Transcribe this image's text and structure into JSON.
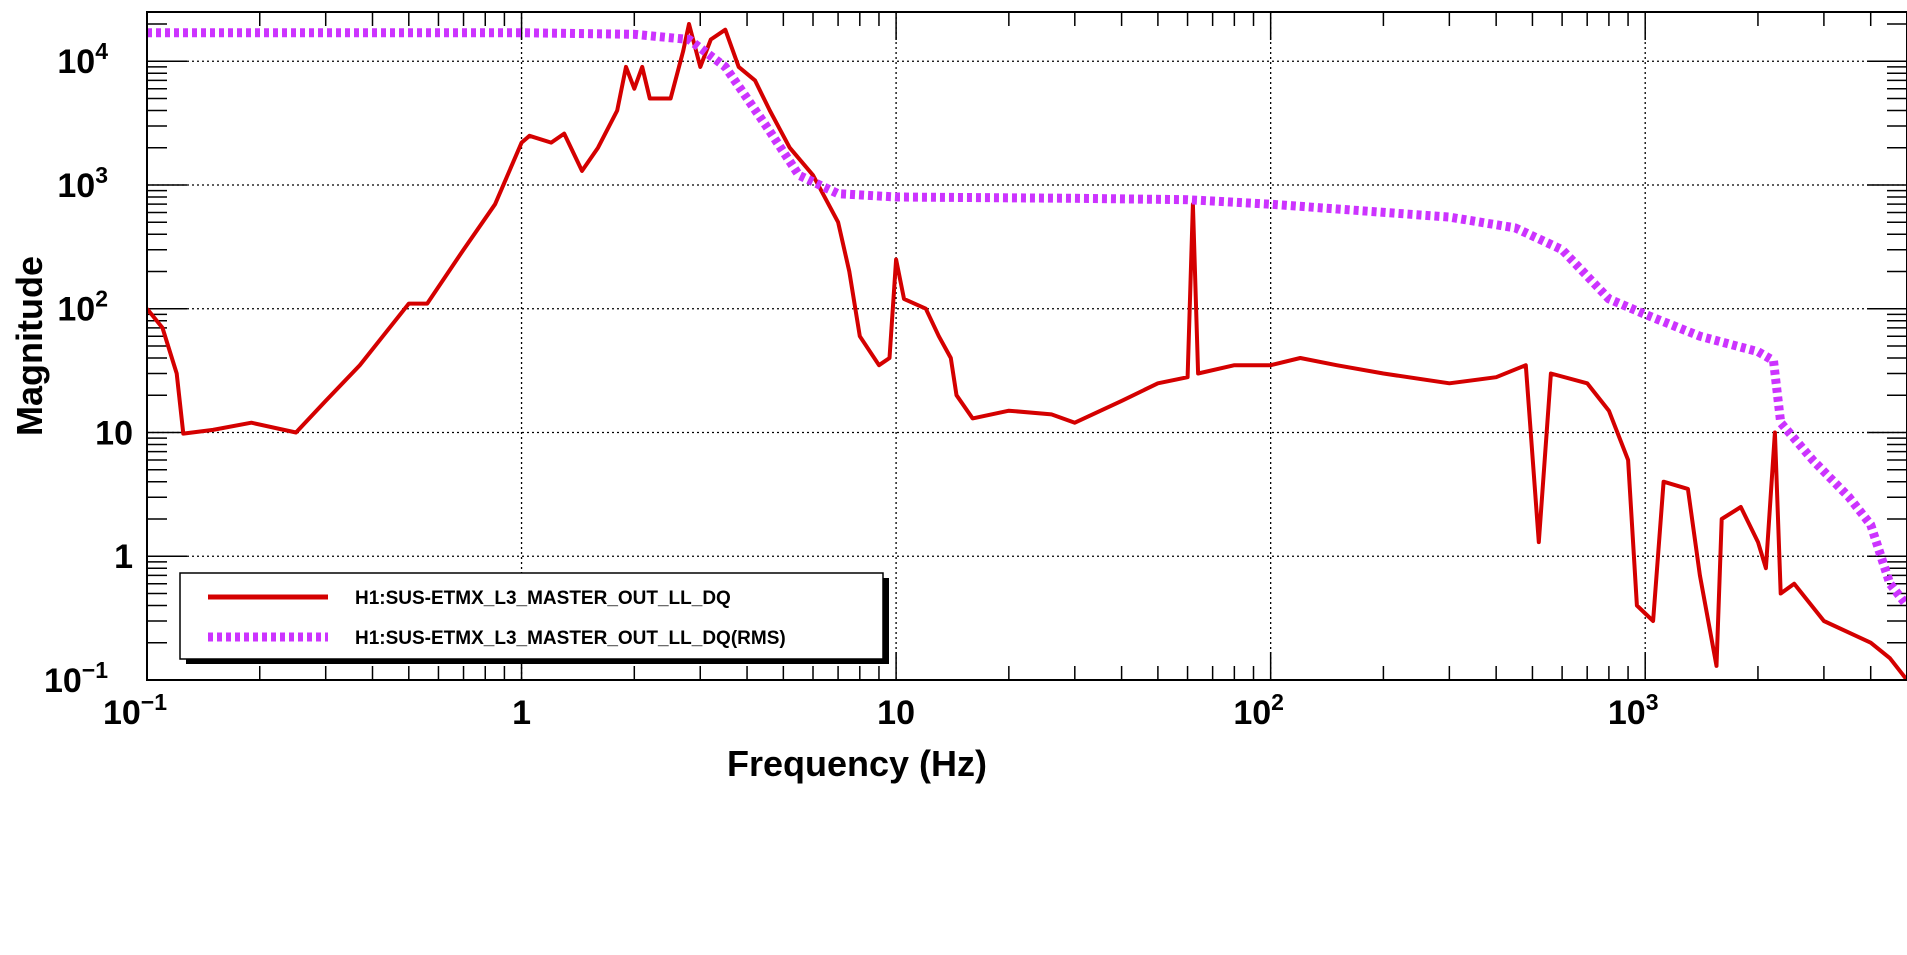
{
  "chart_data": {
    "type": "line",
    "xlabel": "Frequency (Hz)",
    "ylabel": "Magnitude",
    "xscale": "log",
    "yscale": "log",
    "xlim": [
      0.1,
      5000
    ],
    "ylim": [
      0.1,
      25000
    ],
    "grid": true,
    "legend_placement": "bottom-left",
    "x_tick_labels": [
      {
        "value": 0.1,
        "base": "10",
        "exp": "−1"
      },
      {
        "value": 1,
        "base": "1",
        "exp": ""
      },
      {
        "value": 10,
        "base": "10",
        "exp": ""
      },
      {
        "value": 100,
        "base": "10",
        "exp": "2"
      },
      {
        "value": 1000,
        "base": "10",
        "exp": "3"
      }
    ],
    "y_tick_labels": [
      {
        "value": 0.1,
        "base": "10",
        "exp": "−1"
      },
      {
        "value": 1,
        "base": "1",
        "exp": ""
      },
      {
        "value": 10,
        "base": "10",
        "exp": ""
      },
      {
        "value": 100,
        "base": "10",
        "exp": "2"
      },
      {
        "value": 1000,
        "base": "10",
        "exp": "3"
      },
      {
        "value": 10000,
        "base": "10",
        "exp": "4"
      }
    ],
    "series": [
      {
        "name": "H1:SUS-ETMX_L3_MASTER_OUT_LL_DQ",
        "color": "#d40000",
        "style": "solid",
        "points": [
          [
            0.1,
            100
          ],
          [
            0.11,
            70
          ],
          [
            0.12,
            30
          ],
          [
            0.125,
            9.8
          ],
          [
            0.15,
            10.5
          ],
          [
            0.19,
            12
          ],
          [
            0.25,
            10
          ],
          [
            0.3,
            18
          ],
          [
            0.37,
            35
          ],
          [
            0.5,
            110
          ],
          [
            0.56,
            110
          ],
          [
            0.7,
            300
          ],
          [
            0.85,
            700
          ],
          [
            1.0,
            2200
          ],
          [
            1.05,
            2500
          ],
          [
            1.2,
            2200
          ],
          [
            1.3,
            2600
          ],
          [
            1.45,
            1300
          ],
          [
            1.6,
            2000
          ],
          [
            1.8,
            4000
          ],
          [
            1.9,
            9000
          ],
          [
            2.0,
            6000
          ],
          [
            2.1,
            9000
          ],
          [
            2.2,
            5000
          ],
          [
            2.5,
            5000
          ],
          [
            2.7,
            12000
          ],
          [
            2.8,
            20000
          ],
          [
            3.0,
            9000
          ],
          [
            3.2,
            15000
          ],
          [
            3.5,
            18000
          ],
          [
            3.8,
            9000
          ],
          [
            4.2,
            7000
          ],
          [
            4.6,
            4000
          ],
          [
            5.2,
            2000
          ],
          [
            6,
            1200
          ],
          [
            7,
            500
          ],
          [
            7.5,
            200
          ],
          [
            8,
            60
          ],
          [
            9,
            35
          ],
          [
            9.6,
            40
          ],
          [
            10,
            250
          ],
          [
            10.5,
            120
          ],
          [
            12,
            100
          ],
          [
            13,
            60
          ],
          [
            14,
            40
          ],
          [
            14.5,
            20
          ],
          [
            16,
            13
          ],
          [
            20,
            15
          ],
          [
            26,
            14
          ],
          [
            30,
            12
          ],
          [
            40,
            18
          ],
          [
            50,
            25
          ],
          [
            60,
            28
          ],
          [
            62,
            700
          ],
          [
            64,
            30
          ],
          [
            80,
            35
          ],
          [
            100,
            35
          ],
          [
            120,
            40
          ],
          [
            150,
            35
          ],
          [
            200,
            30
          ],
          [
            300,
            25
          ],
          [
            400,
            28
          ],
          [
            480,
            35
          ],
          [
            520,
            1.3
          ],
          [
            560,
            30
          ],
          [
            700,
            25
          ],
          [
            800,
            15
          ],
          [
            900,
            6
          ],
          [
            950,
            0.4
          ],
          [
            1050,
            0.3
          ],
          [
            1120,
            4
          ],
          [
            1300,
            3.5
          ],
          [
            1400,
            0.7
          ],
          [
            1550,
            0.13
          ],
          [
            1600,
            2
          ],
          [
            1800,
            2.5
          ],
          [
            2000,
            1.3
          ],
          [
            2100,
            0.8
          ],
          [
            2220,
            10
          ],
          [
            2300,
            0.5
          ],
          [
            2500,
            0.6
          ],
          [
            3000,
            0.3
          ],
          [
            4000,
            0.2
          ],
          [
            4500,
            0.15
          ],
          [
            5000,
            0.1
          ]
        ]
      },
      {
        "name": "H1:SUS-ETMX_L3_MASTER_OUT_LL_DQ(RMS)",
        "color": "#cc33ff",
        "style": "dotted",
        "points": [
          [
            0.1,
            17000
          ],
          [
            1.0,
            17000
          ],
          [
            2.0,
            16500
          ],
          [
            2.8,
            15000
          ],
          [
            3.5,
            9000
          ],
          [
            4.5,
            3000
          ],
          [
            5.5,
            1200
          ],
          [
            7,
            850
          ],
          [
            10,
            800
          ],
          [
            30,
            780
          ],
          [
            60,
            760
          ],
          [
            100,
            700
          ],
          [
            300,
            550
          ],
          [
            450,
            450
          ],
          [
            600,
            300
          ],
          [
            800,
            120
          ],
          [
            1000,
            90
          ],
          [
            1400,
            60
          ],
          [
            2000,
            45
          ],
          [
            2200,
            38
          ],
          [
            2300,
            12
          ],
          [
            2800,
            6
          ],
          [
            3500,
            3
          ],
          [
            4000,
            1.8
          ],
          [
            4500,
            0.6
          ],
          [
            5000,
            0.4
          ]
        ]
      }
    ]
  }
}
